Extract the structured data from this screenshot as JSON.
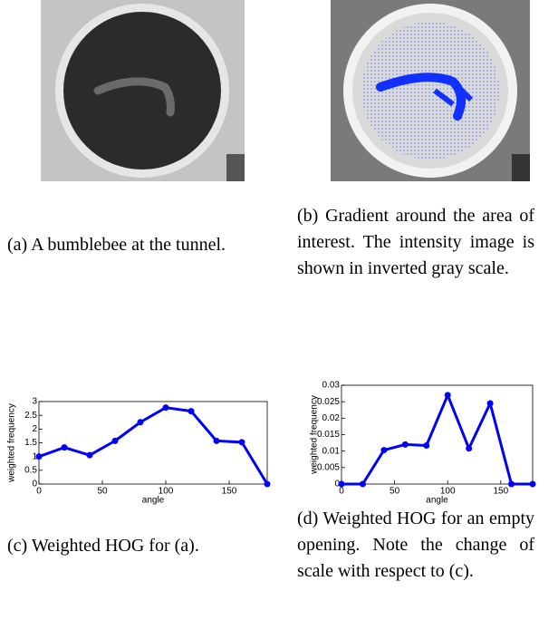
{
  "captions": {
    "a": "(a) A bumblebee at the tunnel.",
    "b": "(b) Gradient around the area of interest. The intensity image is shown in inverted gray scale.",
    "c": "(c) Weighted HOG for (a).",
    "d": "(d) Weighted HOG for an empty opening. Note the change of scale with respect to (c)."
  },
  "chart_data": [
    {
      "type": "line",
      "xlabel": "angle",
      "ylabel": "weighted frequency",
      "x": [
        0,
        20,
        40,
        60,
        80,
        100,
        120,
        140,
        160,
        180
      ],
      "series": [
        {
          "color": "#0000ff",
          "values": [
            1.0,
            1.33,
            1.05,
            1.57,
            2.25,
            2.78,
            2.65,
            1.57,
            1.52,
            0
          ]
        }
      ],
      "xlim": [
        0,
        180
      ],
      "xticks": [
        0,
        50,
        100,
        150
      ],
      "ylim": [
        0,
        3
      ],
      "yticks": [
        0,
        0.5,
        1,
        1.5,
        2,
        2.5,
        3
      ]
    },
    {
      "type": "line",
      "xlabel": "angle",
      "ylabel": "weighted frequency",
      "x": [
        0,
        20,
        40,
        60,
        80,
        100,
        120,
        140,
        160,
        180
      ],
      "series": [
        {
          "color": "#0000ff",
          "values": [
            0,
            0,
            0.0103,
            0.012,
            0.0117,
            0.027,
            0.0108,
            0.0245,
            0,
            0
          ]
        }
      ],
      "xlim": [
        0,
        180
      ],
      "xticks": [
        0,
        50,
        100,
        150
      ],
      "ylim": [
        0,
        0.03
      ],
      "yticks": [
        0,
        0.005,
        0.01,
        0.015,
        0.02,
        0.025,
        0.03
      ]
    }
  ]
}
